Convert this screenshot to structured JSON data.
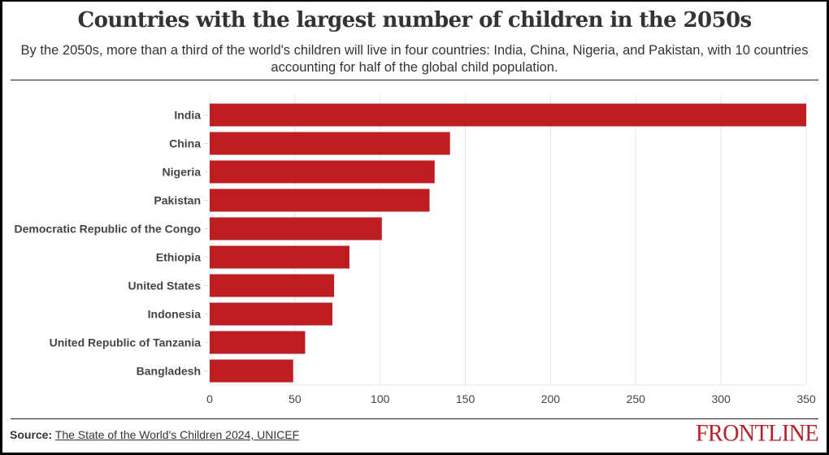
{
  "header": {
    "title": "Countries with the largest number of children in the 2050s",
    "subtitle": "By the 2050s, more than a third of the world's children will live in four countries: India, China, Nigeria, and Pakistan, with 10 countries accounting for half of the global child population."
  },
  "chart_data": {
    "type": "bar",
    "orientation": "horizontal",
    "title": "Countries with the largest number of children in the 2050s",
    "xlabel": "",
    "ylabel": "",
    "categories": [
      "India",
      "China",
      "Nigeria",
      "Pakistan",
      "Democratic Republic of the Congo",
      "Ethiopia",
      "United States",
      "Indonesia",
      "United Republic of Tanzania",
      "Bangladesh"
    ],
    "values": [
      350,
      141,
      132,
      129,
      101,
      82,
      73,
      72,
      56,
      49
    ],
    "xlim": [
      0,
      350
    ],
    "xticks": [
      0,
      50,
      100,
      150,
      200,
      250,
      300,
      350
    ],
    "grid": true,
    "bar_color": "#be1e22"
  },
  "footer": {
    "source_label": "Source:",
    "source_link": "The State of the World's Children 2024, UNICEF",
    "brand": "FRONTLINE",
    "brand_color": "#b5202a"
  }
}
